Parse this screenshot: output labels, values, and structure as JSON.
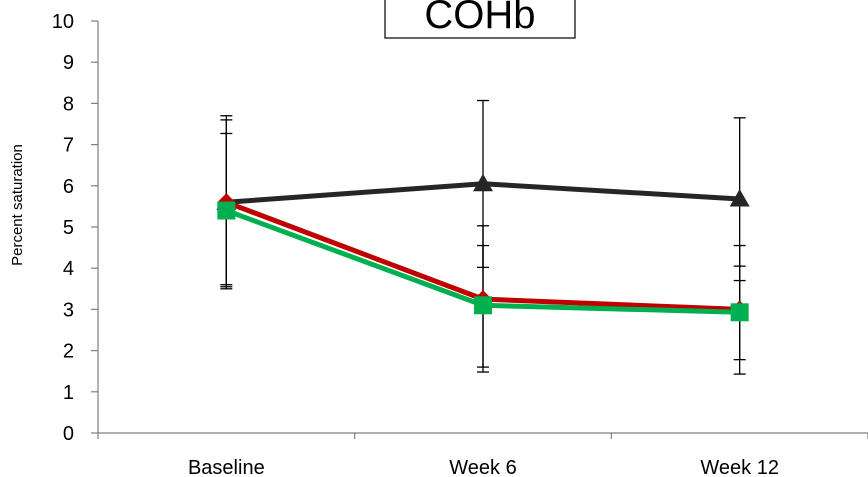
{
  "chart_data": {
    "type": "line",
    "title": "COHb",
    "xlabel": "",
    "ylabel": "Percent saturation",
    "categories": [
      "Baseline",
      "Week 6",
      "Week 12"
    ],
    "ylim": [
      0,
      10
    ],
    "yticks": [
      0,
      1,
      2,
      3,
      4,
      5,
      6,
      7,
      8,
      9,
      10
    ],
    "grid": false,
    "legend": "none",
    "series": [
      {
        "color": "#262626",
        "marker": "triangle",
        "values": [
          5.6,
          6.05,
          5.68
        ],
        "err_upper": [
          7.7,
          8.07,
          7.65
        ],
        "err_lower": [
          3.5,
          4.02,
          3.7
        ]
      },
      {
        "color": "#c00000",
        "marker": "diamond",
        "values": [
          5.6,
          3.25,
          3.0
        ],
        "err_upper": [
          7.6,
          5.03,
          4.55
        ],
        "err_lower": [
          3.55,
          1.48,
          1.43
        ]
      },
      {
        "color": "#00b050",
        "marker": "square",
        "values": [
          5.4,
          3.1,
          2.93
        ],
        "err_upper": [
          7.27,
          4.55,
          4.05
        ],
        "err_lower": [
          3.6,
          1.6,
          1.78
        ]
      }
    ]
  }
}
